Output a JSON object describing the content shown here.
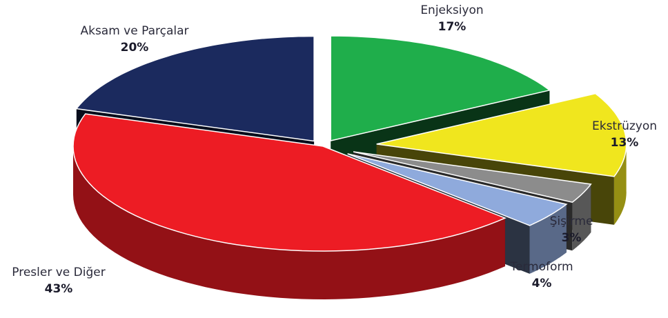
{
  "chart_data": {
    "type": "pie3d",
    "categories": [
      "Enjeksiyon",
      "Ekstrüzyon",
      "Şişirme",
      "Termoform",
      "Presler ve Diğer",
      "Aksam ve Parçalar"
    ],
    "values": [
      17,
      13,
      3,
      4,
      43,
      20
    ],
    "value_labels": [
      "17%",
      "13%",
      "3%",
      "4%",
      "43%",
      "20%"
    ],
    "colors": [
      "#1fae4b",
      "#f0e61e",
      "#8c8c8c",
      "#8faadc",
      "#ed1c24",
      "#1b2a5e"
    ]
  }
}
